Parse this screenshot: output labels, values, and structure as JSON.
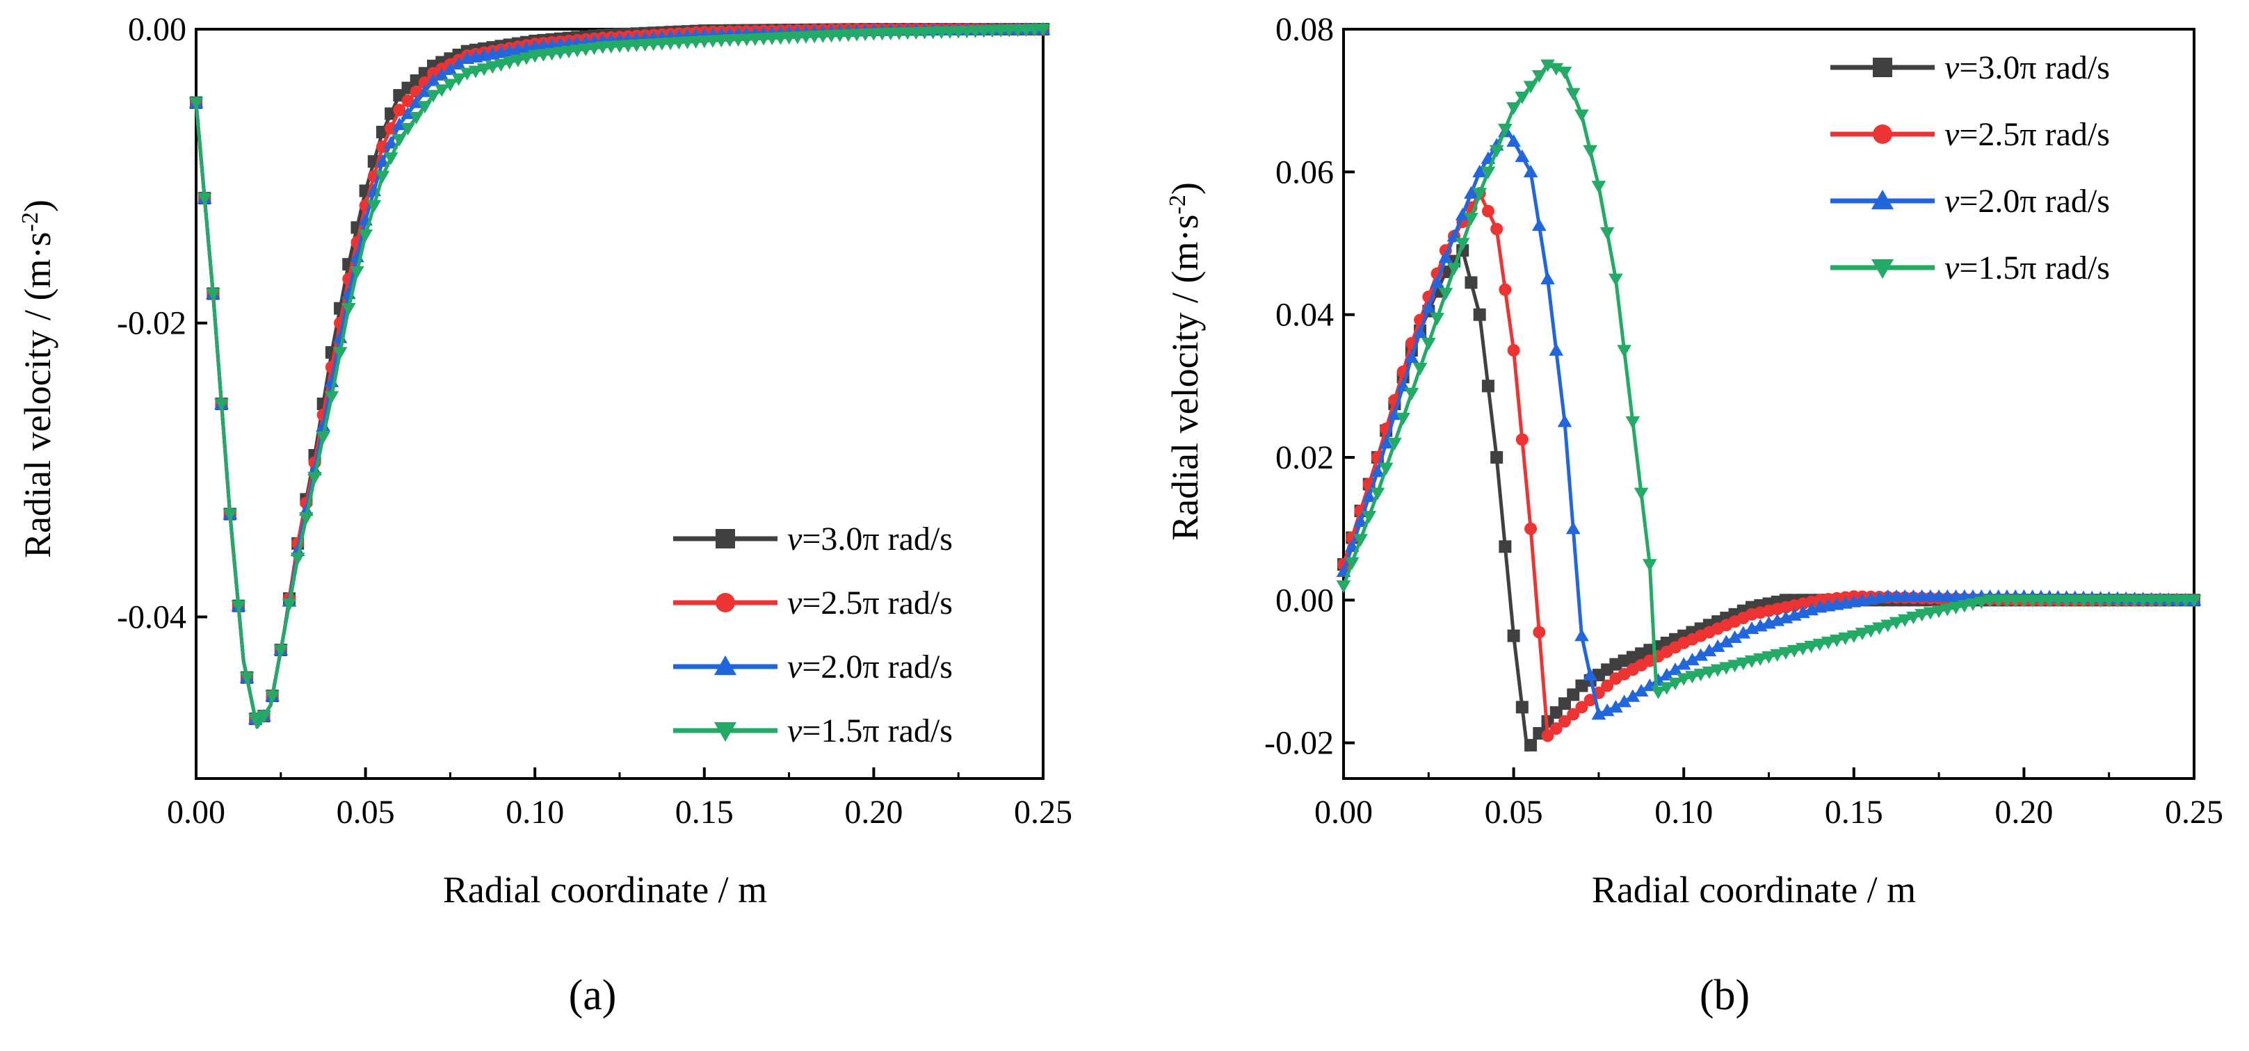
{
  "chart_data": [
    {
      "type": "line",
      "panel_label": "(a)",
      "title": "",
      "xlabel": "Radial coordinate / m",
      "ylabel": "Radial velocity / (m·s",
      "ylabel_sup": "-2",
      "ylabel_close": ")",
      "xlim": [
        0,
        0.25
      ],
      "ylim": [
        -0.051,
        0
      ],
      "xticks": [
        0,
        0.05,
        0.1,
        0.15,
        0.2,
        0.25
      ],
      "xtick_labels": [
        "0.00",
        "0.05",
        "0.10",
        "0.15",
        "0.20",
        "0.25"
      ],
      "yticks": [
        0,
        -0.02,
        -0.04
      ],
      "ytick_labels": [
        "0.00",
        "-0.02",
        "-0.04"
      ],
      "legend_position": "bottom-right",
      "series": [
        {
          "name": "v=3.0π rad/s",
          "legend_var": "v",
          "legend_rest": "=3.0π rad/s",
          "color": "#404040",
          "marker": "square",
          "points": [
            [
              0,
              -0.005
            ],
            [
              0.005,
              -0.018
            ],
            [
              0.01,
              -0.033
            ],
            [
              0.014,
              -0.043
            ],
            [
              0.018,
              -0.0475
            ],
            [
              0.022,
              -0.046
            ],
            [
              0.026,
              -0.041
            ],
            [
              0.03,
              -0.035
            ],
            [
              0.035,
              -0.029
            ],
            [
              0.04,
              -0.022
            ],
            [
              0.045,
              -0.016
            ],
            [
              0.05,
              -0.011
            ],
            [
              0.055,
              -0.007
            ],
            [
              0.06,
              -0.0045
            ],
            [
              0.07,
              -0.0025
            ],
            [
              0.08,
              -0.0015
            ],
            [
              0.1,
              -0.0008
            ],
            [
              0.12,
              -0.0004
            ],
            [
              0.15,
              -0.0001
            ],
            [
              0.2,
              0
            ],
            [
              0.25,
              0
            ]
          ]
        },
        {
          "name": "v=2.5π rad/s",
          "legend_var": "v",
          "legend_rest": "=2.5π rad/s",
          "color": "#ee3333",
          "marker": "circle",
          "points": [
            [
              0,
              -0.005
            ],
            [
              0.005,
              -0.018
            ],
            [
              0.01,
              -0.033
            ],
            [
              0.014,
              -0.043
            ],
            [
              0.018,
              -0.0475
            ],
            [
              0.022,
              -0.046
            ],
            [
              0.026,
              -0.041
            ],
            [
              0.03,
              -0.035
            ],
            [
              0.035,
              -0.0295
            ],
            [
              0.04,
              -0.023
            ],
            [
              0.045,
              -0.017
            ],
            [
              0.05,
              -0.012
            ],
            [
              0.055,
              -0.008
            ],
            [
              0.06,
              -0.0055
            ],
            [
              0.07,
              -0.003
            ],
            [
              0.08,
              -0.0018
            ],
            [
              0.1,
              -0.001
            ],
            [
              0.12,
              -0.0006
            ],
            [
              0.15,
              -0.0002
            ],
            [
              0.2,
              0
            ],
            [
              0.25,
              0
            ]
          ]
        },
        {
          "name": "v=2.0π rad/s",
          "legend_var": "v",
          "legend_rest": "=2.0π rad/s",
          "color": "#2266dd",
          "marker": "triangle-up",
          "points": [
            [
              0,
              -0.005
            ],
            [
              0.005,
              -0.018
            ],
            [
              0.01,
              -0.033
            ],
            [
              0.014,
              -0.043
            ],
            [
              0.018,
              -0.0475
            ],
            [
              0.022,
              -0.046
            ],
            [
              0.026,
              -0.041
            ],
            [
              0.03,
              -0.0355
            ],
            [
              0.035,
              -0.03
            ],
            [
              0.04,
              -0.024
            ],
            [
              0.045,
              -0.018
            ],
            [
              0.05,
              -0.013
            ],
            [
              0.055,
              -0.009
            ],
            [
              0.06,
              -0.0065
            ],
            [
              0.07,
              -0.0035
            ],
            [
              0.08,
              -0.002
            ],
            [
              0.1,
              -0.0012
            ],
            [
              0.12,
              -0.0008
            ],
            [
              0.15,
              -0.0004
            ],
            [
              0.2,
              -0.0001
            ],
            [
              0.25,
              0
            ]
          ]
        },
        {
          "name": "v=1.5π rad/s",
          "legend_var": "v",
          "legend_rest": "=1.5π rad/s",
          "color": "#22aa66",
          "marker": "triangle-down",
          "points": [
            [
              0,
              -0.005
            ],
            [
              0.005,
              -0.018
            ],
            [
              0.01,
              -0.033
            ],
            [
              0.014,
              -0.043
            ],
            [
              0.018,
              -0.0475
            ],
            [
              0.022,
              -0.046
            ],
            [
              0.026,
              -0.041
            ],
            [
              0.03,
              -0.036
            ],
            [
              0.035,
              -0.0305
            ],
            [
              0.04,
              -0.025
            ],
            [
              0.045,
              -0.019
            ],
            [
              0.05,
              -0.014
            ],
            [
              0.055,
              -0.01
            ],
            [
              0.06,
              -0.0075
            ],
            [
              0.07,
              -0.0045
            ],
            [
              0.08,
              -0.003
            ],
            [
              0.1,
              -0.0018
            ],
            [
              0.12,
              -0.0012
            ],
            [
              0.15,
              -0.0008
            ],
            [
              0.2,
              -0.0003
            ],
            [
              0.25,
              0
            ]
          ]
        }
      ]
    },
    {
      "type": "line",
      "panel_label": "(b)",
      "title": "",
      "xlabel": "Radial coordinate / m",
      "ylabel": "Radial velocity / (m·s",
      "ylabel_sup": "-2",
      "ylabel_close": ")",
      "xlim": [
        0,
        0.25
      ],
      "ylim": [
        -0.025,
        0.08
      ],
      "xticks": [
        0,
        0.05,
        0.1,
        0.15,
        0.2,
        0.25
      ],
      "xtick_labels": [
        "0.00",
        "0.05",
        "0.10",
        "0.15",
        "0.20",
        "0.25"
      ],
      "yticks": [
        0.08,
        0.06,
        0.04,
        0.02,
        0,
        -0.02
      ],
      "ytick_labels": [
        "0.08",
        "0.06",
        "0.04",
        "0.02",
        "0.00",
        "-0.02"
      ],
      "legend_position": "top-right",
      "series": [
        {
          "name": "v=3.0π rad/s",
          "legend_var": "v",
          "legend_rest": "=3.0π rad/s",
          "color": "#404040",
          "marker": "square",
          "points": [
            [
              0,
              0.005
            ],
            [
              0.01,
              0.02
            ],
            [
              0.02,
              0.035
            ],
            [
              0.03,
              0.046
            ],
            [
              0.035,
              0.049
            ],
            [
              0.04,
              0.04
            ],
            [
              0.045,
              0.02
            ],
            [
              0.05,
              -0.005
            ],
            [
              0.054,
              -0.021
            ],
            [
              0.06,
              -0.017
            ],
            [
              0.07,
              -0.012
            ],
            [
              0.08,
              -0.009
            ],
            [
              0.1,
              -0.005
            ],
            [
              0.12,
              -0.001
            ],
            [
              0.13,
              0
            ],
            [
              0.15,
              0
            ],
            [
              0.2,
              0
            ],
            [
              0.25,
              0
            ]
          ]
        },
        {
          "name": "v=2.5π rad/s",
          "legend_var": "v",
          "legend_rest": "=2.5π rad/s",
          "color": "#ee3333",
          "marker": "circle",
          "points": [
            [
              0,
              0.005
            ],
            [
              0.01,
              0.02
            ],
            [
              0.02,
              0.036
            ],
            [
              0.03,
              0.049
            ],
            [
              0.04,
              0.057
            ],
            [
              0.045,
              0.052
            ],
            [
              0.05,
              0.035
            ],
            [
              0.055,
              0.01
            ],
            [
              0.06,
              -0.019
            ],
            [
              0.07,
              -0.015
            ],
            [
              0.08,
              -0.011
            ],
            [
              0.1,
              -0.006
            ],
            [
              0.12,
              -0.002
            ],
            [
              0.14,
              0
            ],
            [
              0.15,
              0.0005
            ],
            [
              0.2,
              0
            ],
            [
              0.25,
              0
            ]
          ]
        },
        {
          "name": "v=2.0π rad/s",
          "legend_var": "v",
          "legend_rest": "=2.0π rad/s",
          "color": "#2266dd",
          "marker": "triangle-up",
          "points": [
            [
              0,
              0.004
            ],
            [
              0.01,
              0.018
            ],
            [
              0.02,
              0.034
            ],
            [
              0.03,
              0.048
            ],
            [
              0.04,
              0.06
            ],
            [
              0.048,
              0.066
            ],
            [
              0.055,
              0.06
            ],
            [
              0.06,
              0.045
            ],
            [
              0.065,
              0.025
            ],
            [
              0.07,
              -0.005
            ],
            [
              0.075,
              -0.016
            ],
            [
              0.08,
              -0.015
            ],
            [
              0.1,
              -0.009
            ],
            [
              0.12,
              -0.004
            ],
            [
              0.14,
              -0.001
            ],
            [
              0.16,
              0.0005
            ],
            [
              0.2,
              0.0005
            ],
            [
              0.25,
              0
            ]
          ]
        },
        {
          "name": "v=1.5π rad/s",
          "legend_var": "v",
          "legend_rest": "=1.5π rad/s",
          "color": "#22aa66",
          "marker": "triangle-down",
          "points": [
            [
              0,
              0.002
            ],
            [
              0.01,
              0.015
            ],
            [
              0.02,
              0.029
            ],
            [
              0.03,
              0.043
            ],
            [
              0.04,
              0.057
            ],
            [
              0.05,
              0.069
            ],
            [
              0.06,
              0.075
            ],
            [
              0.065,
              0.074
            ],
            [
              0.07,
              0.068
            ],
            [
              0.075,
              0.058
            ],
            [
              0.08,
              0.045
            ],
            [
              0.085,
              0.025
            ],
            [
              0.09,
              0.005
            ],
            [
              0.092,
              -0.013
            ],
            [
              0.1,
              -0.011
            ],
            [
              0.12,
              -0.0085
            ],
            [
              0.15,
              -0.005
            ],
            [
              0.17,
              -0.002
            ],
            [
              0.19,
              0
            ],
            [
              0.2,
              0
            ],
            [
              0.25,
              0
            ]
          ]
        }
      ]
    }
  ]
}
